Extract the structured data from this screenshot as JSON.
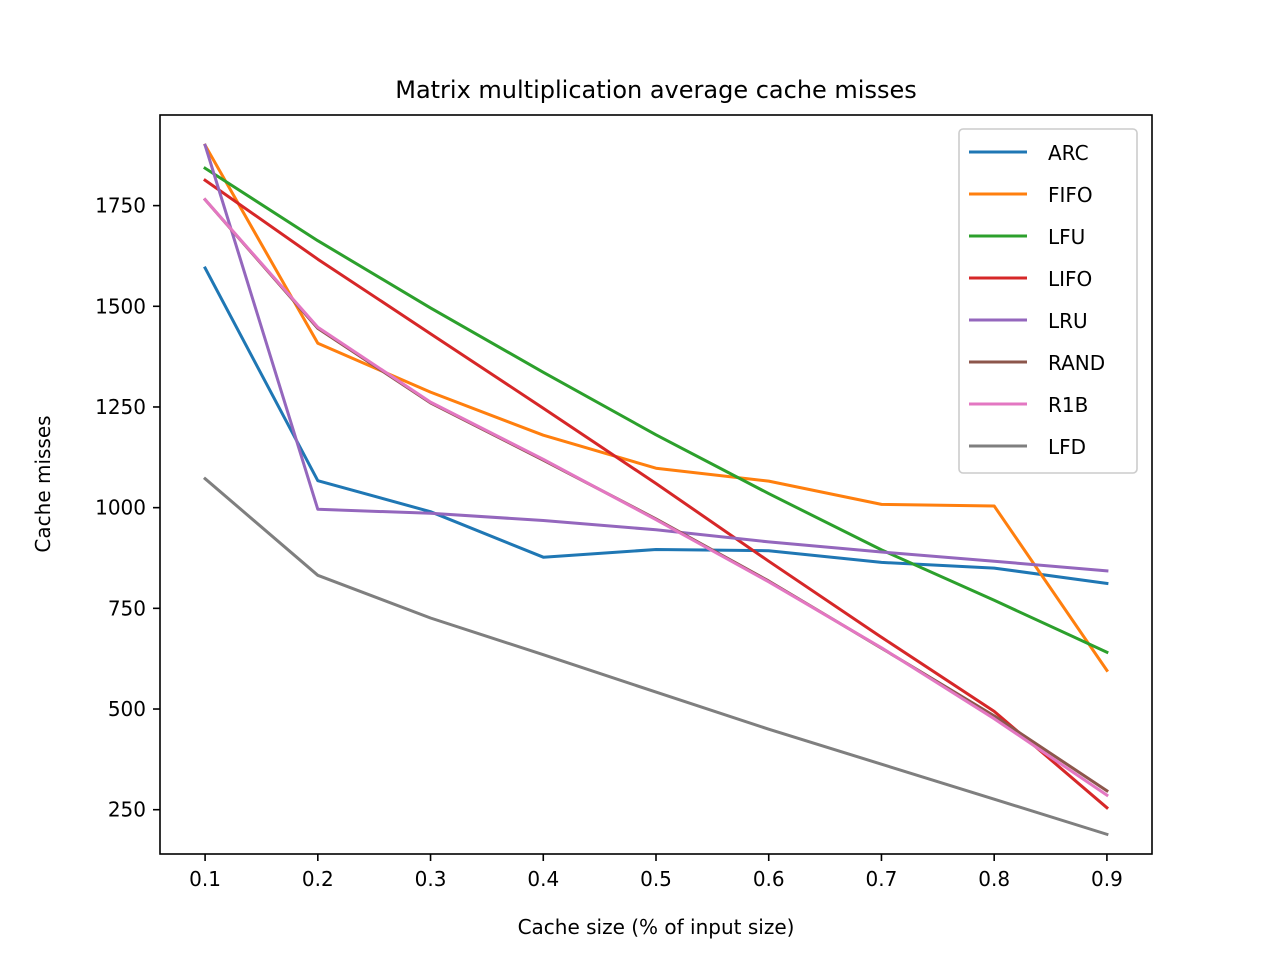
{
  "chart_data": {
    "type": "line",
    "title": "Matrix multiplication average cache misses",
    "xlabel": "Cache size (% of input size)",
    "ylabel": "Cache misses",
    "x": [
      0.1,
      0.2,
      0.3,
      0.4,
      0.5,
      0.6,
      0.7,
      0.8,
      0.9
    ],
    "xticks": [
      "0.1",
      "0.2",
      "0.3",
      "0.4",
      "0.5",
      "0.6",
      "0.7",
      "0.8",
      "0.9"
    ],
    "yticks": [
      "250",
      "500",
      "750",
      "1000",
      "1250",
      "1500",
      "1750"
    ],
    "xlim": [
      0.06,
      0.94
    ],
    "ylim": [
      140,
      1975
    ],
    "grid": false,
    "legend_position": "upper right",
    "series": [
      {
        "name": "ARC",
        "color": "#1f77b4",
        "values": [
          1595,
          1067,
          990,
          877,
          896,
          893,
          864,
          850,
          812
        ]
      },
      {
        "name": "FIFO",
        "color": "#ff7f0e",
        "values": [
          1900,
          1408,
          1287,
          1180,
          1098,
          1066,
          1008,
          1004,
          596
        ]
      },
      {
        "name": "LFU",
        "color": "#2ca02c",
        "values": [
          1843,
          1663,
          1496,
          1336,
          1181,
          1035,
          895,
          770,
          641
        ]
      },
      {
        "name": "LIFO",
        "color": "#d62728",
        "values": [
          1813,
          1617,
          1432,
          1247,
          1060,
          867,
          678,
          494,
          255
        ]
      },
      {
        "name": "LRU",
        "color": "#9467bd",
        "values": [
          1900,
          996,
          986,
          968,
          945,
          915,
          890,
          867,
          843
        ]
      },
      {
        "name": "RAND",
        "color": "#8c564b",
        "values": [
          1765,
          1445,
          1260,
          1118,
          972,
          818,
          651,
          483,
          297
        ]
      },
      {
        "name": "R1B",
        "color": "#e377c2",
        "values": [
          1765,
          1448,
          1262,
          1120,
          970,
          816,
          652,
          476,
          286
        ]
      },
      {
        "name": "LFD",
        "color": "#7f7f7f",
        "values": [
          1072,
          832,
          726,
          635,
          542,
          450,
          363,
          276,
          189
        ]
      }
    ]
  }
}
